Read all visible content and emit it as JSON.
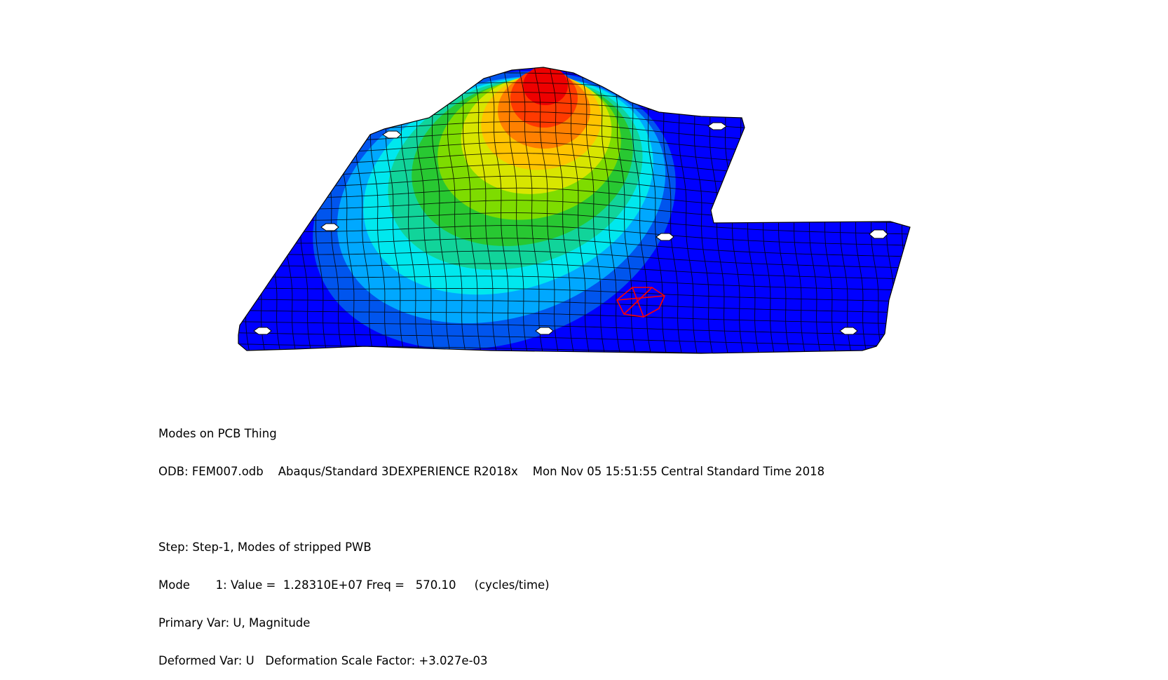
{
  "viewport": {
    "model_name": "PCB plate, deformed mode shape contour",
    "contour_colors": [
      "#0000ff",
      "#0055ee",
      "#00a8ff",
      "#00e8ee",
      "#11d49a",
      "#28c832",
      "#7edc00",
      "#d8e600",
      "#ffc400",
      "#ff8000",
      "#ff3a00",
      "#ee0000"
    ],
    "mesh_color": "#000000",
    "highlight_color": "#ff0000"
  },
  "info": {
    "title": "Modes on PCB Thing",
    "odb_line": "ODB: FEM007.odb    Abaqus/Standard 3DEXPERIENCE R2018x    Mon Nov 05 15:51:55 Central Standard Time 2018",
    "step_line": "Step: Step-1, Modes of stripped PWB",
    "mode_line": "Mode       1: Value =  1.28310E+07 Freq =   570.10     (cycles/time)",
    "primary_line": "Primary Var: U, Magnitude",
    "deformed_line": "Deformed Var: U   Deformation Scale Factor: +3.027e-03"
  }
}
